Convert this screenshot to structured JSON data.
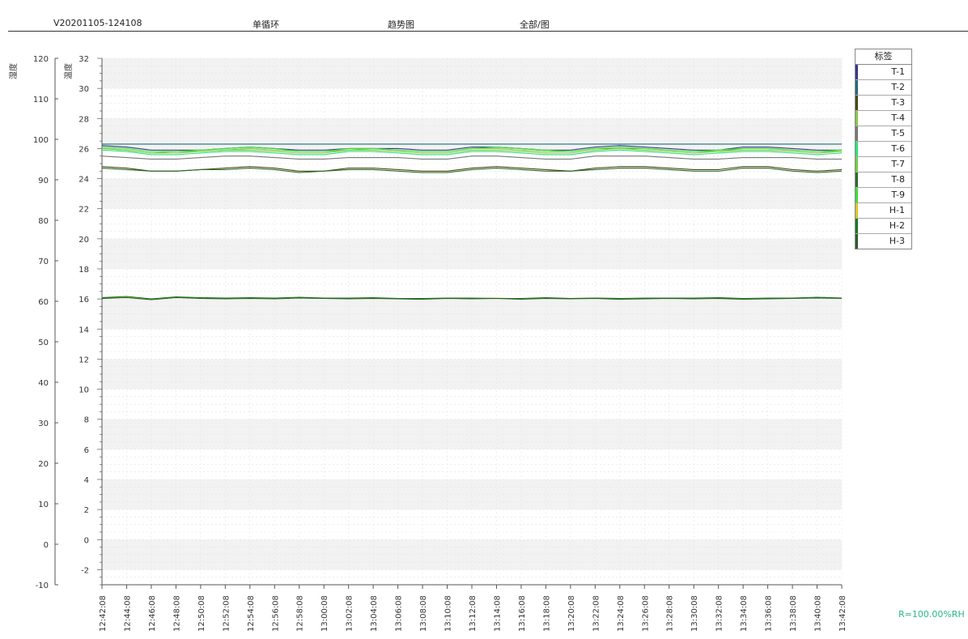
{
  "header": {
    "version": "V20201105-124108",
    "mode": "单循环",
    "view": "趋势图",
    "scope": "全部/图"
  },
  "footer": {
    "rh_label": "R=100.00%RH"
  },
  "colors": {
    "band": "#f2f2f2",
    "axis": "#555555"
  },
  "chart_data": {
    "type": "line",
    "title": "",
    "axes": {
      "humidity": {
        "label": "湿度",
        "range": [
          -10,
          120
        ],
        "ticks": [
          -10,
          0,
          10,
          20,
          30,
          40,
          50,
          60,
          70,
          80,
          90,
          100,
          110,
          120
        ]
      },
      "temperature": {
        "label": "温度",
        "range": [
          -3,
          32
        ],
        "ticks": [
          -2,
          0,
          2,
          4,
          6,
          8,
          10,
          12,
          14,
          16,
          18,
          20,
          22,
          24,
          26,
          28,
          30,
          32
        ]
      }
    },
    "x": [
      "12:42:08",
      "12:44:08",
      "12:46:08",
      "12:48:08",
      "12:50:08",
      "12:52:08",
      "12:54:08",
      "12:56:08",
      "12:58:08",
      "13:00:08",
      "13:02:08",
      "13:04:08",
      "13:06:08",
      "13:08:08",
      "13:10:08",
      "13:12:08",
      "13:14:08",
      "13:16:08",
      "13:18:08",
      "13:20:08",
      "13:22:08",
      "13:24:08",
      "13:26:08",
      "13:28:08",
      "13:30:08",
      "13:32:08",
      "13:34:08",
      "13:36:08",
      "13:38:08",
      "13:40:08",
      "13:42:08"
    ],
    "legend_title": "标签",
    "legend_position": "right",
    "series": [
      {
        "name": "T-1",
        "color": "#3a3a8c",
        "values": [
          26.2,
          26.1,
          25.9,
          25.9,
          25.9,
          26.0,
          26.1,
          26.0,
          25.9,
          25.9,
          26.0,
          26.0,
          26.0,
          25.9,
          25.9,
          26.1,
          26.1,
          26.0,
          25.9,
          25.9,
          26.1,
          26.2,
          26.1,
          26.0,
          25.9,
          25.9,
          26.1,
          26.1,
          26.0,
          25.9,
          25.9
        ]
      },
      {
        "name": "T-2",
        "color": "#1f6e7a",
        "values": [
          26.3,
          26.3,
          26.3,
          26.3,
          26.3,
          26.3,
          26.3,
          26.3,
          26.3,
          26.3,
          26.3,
          26.3,
          26.3,
          26.3,
          26.3,
          26.3,
          26.3,
          26.3,
          26.3,
          26.3,
          26.3,
          26.3,
          26.3,
          26.3,
          26.3,
          26.3,
          26.3,
          26.3,
          26.3,
          26.3,
          26.3
        ]
      },
      {
        "name": "T-3",
        "color": "#4a4a10",
        "values": [
          24.8,
          24.7,
          24.5,
          24.5,
          24.6,
          24.7,
          24.8,
          24.7,
          24.5,
          24.5,
          24.7,
          24.7,
          24.6,
          24.5,
          24.5,
          24.7,
          24.8,
          24.7,
          24.6,
          24.5,
          24.7,
          24.8,
          24.8,
          24.7,
          24.6,
          24.6,
          24.8,
          24.8,
          24.6,
          24.5,
          24.6
        ]
      },
      {
        "name": "T-4",
        "color": "#8bc34a",
        "values": [
          26.0,
          25.9,
          25.7,
          25.7,
          25.8,
          25.9,
          25.9,
          25.8,
          25.7,
          25.7,
          25.9,
          25.9,
          25.8,
          25.7,
          25.7,
          25.9,
          25.9,
          25.8,
          25.7,
          25.7,
          25.9,
          26.0,
          25.9,
          25.8,
          25.7,
          25.8,
          25.9,
          25.9,
          25.8,
          25.7,
          25.8
        ]
      },
      {
        "name": "T-5",
        "color": "#777777",
        "values": [
          25.5,
          25.4,
          25.3,
          25.3,
          25.4,
          25.5,
          25.5,
          25.4,
          25.3,
          25.3,
          25.4,
          25.4,
          25.4,
          25.3,
          25.3,
          25.5,
          25.5,
          25.4,
          25.3,
          25.3,
          25.5,
          25.5,
          25.5,
          25.4,
          25.3,
          25.3,
          25.4,
          25.4,
          25.4,
          25.3,
          25.3
        ]
      },
      {
        "name": "T-6",
        "color": "#2ee07a",
        "values": [
          25.9,
          25.8,
          25.6,
          25.6,
          25.7,
          25.8,
          25.8,
          25.7,
          25.6,
          25.6,
          25.8,
          25.8,
          25.7,
          25.6,
          25.6,
          25.8,
          25.8,
          25.7,
          25.6,
          25.6,
          25.8,
          25.9,
          25.8,
          25.7,
          25.6,
          25.7,
          25.8,
          25.8,
          25.7,
          25.6,
          25.7
        ]
      },
      {
        "name": "T-7",
        "color": "#6fcf3f",
        "values": [
          26.0,
          25.9,
          25.7,
          25.8,
          25.8,
          25.9,
          26.0,
          25.9,
          25.8,
          25.8,
          25.9,
          26.0,
          25.9,
          25.8,
          25.8,
          26.0,
          26.0,
          25.9,
          25.8,
          25.8,
          26.0,
          26.0,
          26.0,
          25.9,
          25.8,
          25.8,
          26.0,
          26.0,
          25.9,
          25.8,
          25.8
        ]
      },
      {
        "name": "T-8",
        "color": "#2e6b2e",
        "values": [
          24.7,
          24.6,
          24.5,
          24.5,
          24.6,
          24.6,
          24.7,
          24.6,
          24.4,
          24.5,
          24.6,
          24.6,
          24.5,
          24.4,
          24.4,
          24.6,
          24.7,
          24.6,
          24.5,
          24.5,
          24.6,
          24.7,
          24.7,
          24.6,
          24.5,
          24.5,
          24.7,
          24.7,
          24.5,
          24.4,
          24.5
        ]
      },
      {
        "name": "T-9",
        "color": "#3ddc3d",
        "values": [
          26.1,
          26.0,
          25.8,
          25.8,
          25.9,
          26.0,
          26.1,
          26.0,
          25.8,
          25.8,
          26.0,
          26.0,
          25.9,
          25.8,
          25.8,
          26.0,
          26.1,
          26.0,
          25.9,
          25.8,
          26.0,
          26.1,
          26.0,
          25.9,
          25.8,
          25.9,
          26.0,
          26.0,
          25.9,
          25.8,
          25.9
        ]
      },
      {
        "name": "H-1",
        "color": "#d4c82a",
        "values": [
          60.8,
          61.0,
          60.5,
          61.0,
          60.8,
          60.7,
          60.8,
          60.7,
          60.9,
          60.8,
          60.7,
          60.8,
          60.7,
          60.6,
          60.8,
          60.7,
          60.8,
          60.6,
          60.8,
          60.7,
          60.8,
          60.6,
          60.7,
          60.8,
          60.7,
          60.8,
          60.6,
          60.7,
          60.8,
          60.9,
          60.8
        ]
      },
      {
        "name": "H-2",
        "color": "#1a7a1a",
        "values": [
          60.9,
          61.2,
          60.6,
          61.1,
          60.9,
          60.8,
          60.9,
          60.8,
          61.0,
          60.8,
          60.8,
          60.9,
          60.7,
          60.7,
          60.8,
          60.8,
          60.7,
          60.7,
          60.9,
          60.7,
          60.8,
          60.7,
          60.8,
          60.8,
          60.8,
          60.9,
          60.7,
          60.8,
          60.8,
          61.0,
          60.8
        ]
      },
      {
        "name": "H-3",
        "color": "#2b5e2b",
        "values": [
          60.7,
          60.9,
          60.4,
          60.9,
          60.7,
          60.6,
          60.7,
          60.6,
          60.8,
          60.7,
          60.6,
          60.7,
          60.6,
          60.5,
          60.7,
          60.6,
          60.7,
          60.5,
          60.7,
          60.6,
          60.7,
          60.5,
          60.6,
          60.7,
          60.6,
          60.7,
          60.5,
          60.6,
          60.7,
          60.8,
          60.7
        ]
      }
    ]
  }
}
